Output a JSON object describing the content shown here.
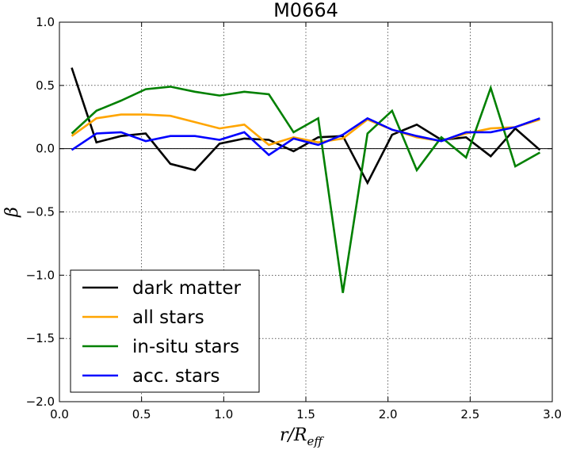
{
  "chart_data": {
    "type": "line",
    "title": "M0664",
    "xlabel_main": "r/R",
    "xlabel_sub": "eff",
    "ylabel": "β",
    "xlim": [
      0.0,
      3.0
    ],
    "ylim": [
      -2.0,
      1.0
    ],
    "grid": true,
    "legend_position": "lower-left",
    "zero_line": 0.0,
    "x_ticks": [
      0.0,
      0.5,
      1.0,
      1.5,
      2.0,
      2.5,
      3.0
    ],
    "x_tick_labels": [
      "0.0",
      "0.5",
      "1.0",
      "1.5",
      "2.0",
      "2.5",
      "3.0"
    ],
    "y_ticks": [
      1.0,
      0.5,
      0.0,
      -0.5,
      -1.0,
      -1.5,
      -2.0
    ],
    "y_tick_labels": [
      "1.0",
      "0.5",
      "0.0",
      "−0.5",
      "−1.0",
      "−1.5",
      "−2.0"
    ],
    "x": [
      0.075,
      0.225,
      0.375,
      0.525,
      0.675,
      0.825,
      0.975,
      1.125,
      1.275,
      1.425,
      1.575,
      1.725,
      1.875,
      2.025,
      2.175,
      2.325,
      2.475,
      2.625,
      2.775,
      2.925
    ],
    "series": [
      {
        "name": "dark matter",
        "color": "#000000",
        "values": [
          0.64,
          0.05,
          0.1,
          0.12,
          -0.12,
          -0.17,
          0.04,
          0.08,
          0.07,
          -0.02,
          0.09,
          0.1,
          -0.27,
          0.11,
          0.19,
          0.07,
          0.09,
          -0.06,
          0.16,
          -0.01
        ]
      },
      {
        "name": "all stars",
        "color": "#FFA500",
        "values": [
          0.1,
          0.24,
          0.27,
          0.27,
          0.26,
          0.21,
          0.16,
          0.19,
          0.03,
          0.09,
          0.05,
          0.08,
          0.23,
          0.15,
          0.09,
          0.06,
          0.12,
          0.16,
          0.17,
          0.23
        ]
      },
      {
        "name": "in-situ stars",
        "color": "#008000",
        "values": [
          0.12,
          0.3,
          0.38,
          0.47,
          0.49,
          0.45,
          0.42,
          0.45,
          0.43,
          0.13,
          0.24,
          -1.14,
          0.12,
          0.3,
          -0.17,
          0.09,
          -0.07,
          0.48,
          -0.14,
          -0.03
        ]
      },
      {
        "name": "acc. stars",
        "color": "#0000FF",
        "values": [
          -0.01,
          0.12,
          0.13,
          0.06,
          0.1,
          0.1,
          0.07,
          0.13,
          -0.05,
          0.08,
          0.03,
          0.11,
          0.24,
          0.15,
          0.1,
          0.06,
          0.13,
          0.13,
          0.17,
          0.24
        ]
      }
    ]
  }
}
